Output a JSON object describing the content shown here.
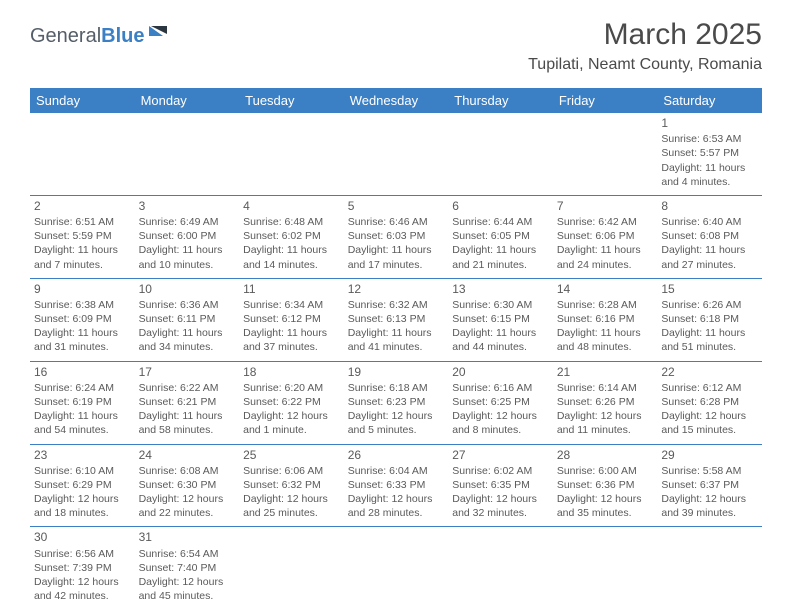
{
  "brand": {
    "part1": "General",
    "part2": "Blue"
  },
  "title": "March 2025",
  "location": "Tupilati, Neamt County, Romania",
  "colors": {
    "header_bg": "#3b7fc4",
    "header_text": "#ffffff",
    "body_text": "#5a5a5a",
    "border": "#3b7fc4",
    "page_bg": "#ffffff"
  },
  "weekdays": [
    "Sunday",
    "Monday",
    "Tuesday",
    "Wednesday",
    "Thursday",
    "Friday",
    "Saturday"
  ],
  "first_weekday_index": 6,
  "days": [
    {
      "n": 1,
      "sunrise": "6:53 AM",
      "sunset": "5:57 PM",
      "daylight": "11 hours and 4 minutes."
    },
    {
      "n": 2,
      "sunrise": "6:51 AM",
      "sunset": "5:59 PM",
      "daylight": "11 hours and 7 minutes."
    },
    {
      "n": 3,
      "sunrise": "6:49 AM",
      "sunset": "6:00 PM",
      "daylight": "11 hours and 10 minutes."
    },
    {
      "n": 4,
      "sunrise": "6:48 AM",
      "sunset": "6:02 PM",
      "daylight": "11 hours and 14 minutes."
    },
    {
      "n": 5,
      "sunrise": "6:46 AM",
      "sunset": "6:03 PM",
      "daylight": "11 hours and 17 minutes."
    },
    {
      "n": 6,
      "sunrise": "6:44 AM",
      "sunset": "6:05 PM",
      "daylight": "11 hours and 21 minutes."
    },
    {
      "n": 7,
      "sunrise": "6:42 AM",
      "sunset": "6:06 PM",
      "daylight": "11 hours and 24 minutes."
    },
    {
      "n": 8,
      "sunrise": "6:40 AM",
      "sunset": "6:08 PM",
      "daylight": "11 hours and 27 minutes."
    },
    {
      "n": 9,
      "sunrise": "6:38 AM",
      "sunset": "6:09 PM",
      "daylight": "11 hours and 31 minutes."
    },
    {
      "n": 10,
      "sunrise": "6:36 AM",
      "sunset": "6:11 PM",
      "daylight": "11 hours and 34 minutes."
    },
    {
      "n": 11,
      "sunrise": "6:34 AM",
      "sunset": "6:12 PM",
      "daylight": "11 hours and 37 minutes."
    },
    {
      "n": 12,
      "sunrise": "6:32 AM",
      "sunset": "6:13 PM",
      "daylight": "11 hours and 41 minutes."
    },
    {
      "n": 13,
      "sunrise": "6:30 AM",
      "sunset": "6:15 PM",
      "daylight": "11 hours and 44 minutes."
    },
    {
      "n": 14,
      "sunrise": "6:28 AM",
      "sunset": "6:16 PM",
      "daylight": "11 hours and 48 minutes."
    },
    {
      "n": 15,
      "sunrise": "6:26 AM",
      "sunset": "6:18 PM",
      "daylight": "11 hours and 51 minutes."
    },
    {
      "n": 16,
      "sunrise": "6:24 AM",
      "sunset": "6:19 PM",
      "daylight": "11 hours and 54 minutes."
    },
    {
      "n": 17,
      "sunrise": "6:22 AM",
      "sunset": "6:21 PM",
      "daylight": "11 hours and 58 minutes."
    },
    {
      "n": 18,
      "sunrise": "6:20 AM",
      "sunset": "6:22 PM",
      "daylight": "12 hours and 1 minute."
    },
    {
      "n": 19,
      "sunrise": "6:18 AM",
      "sunset": "6:23 PM",
      "daylight": "12 hours and 5 minutes."
    },
    {
      "n": 20,
      "sunrise": "6:16 AM",
      "sunset": "6:25 PM",
      "daylight": "12 hours and 8 minutes."
    },
    {
      "n": 21,
      "sunrise": "6:14 AM",
      "sunset": "6:26 PM",
      "daylight": "12 hours and 11 minutes."
    },
    {
      "n": 22,
      "sunrise": "6:12 AM",
      "sunset": "6:28 PM",
      "daylight": "12 hours and 15 minutes."
    },
    {
      "n": 23,
      "sunrise": "6:10 AM",
      "sunset": "6:29 PM",
      "daylight": "12 hours and 18 minutes."
    },
    {
      "n": 24,
      "sunrise": "6:08 AM",
      "sunset": "6:30 PM",
      "daylight": "12 hours and 22 minutes."
    },
    {
      "n": 25,
      "sunrise": "6:06 AM",
      "sunset": "6:32 PM",
      "daylight": "12 hours and 25 minutes."
    },
    {
      "n": 26,
      "sunrise": "6:04 AM",
      "sunset": "6:33 PM",
      "daylight": "12 hours and 28 minutes."
    },
    {
      "n": 27,
      "sunrise": "6:02 AM",
      "sunset": "6:35 PM",
      "daylight": "12 hours and 32 minutes."
    },
    {
      "n": 28,
      "sunrise": "6:00 AM",
      "sunset": "6:36 PM",
      "daylight": "12 hours and 35 minutes."
    },
    {
      "n": 29,
      "sunrise": "5:58 AM",
      "sunset": "6:37 PM",
      "daylight": "12 hours and 39 minutes."
    },
    {
      "n": 30,
      "sunrise": "6:56 AM",
      "sunset": "7:39 PM",
      "daylight": "12 hours and 42 minutes."
    },
    {
      "n": 31,
      "sunrise": "6:54 AM",
      "sunset": "7:40 PM",
      "daylight": "12 hours and 45 minutes."
    }
  ],
  "labels": {
    "sunrise": "Sunrise:",
    "sunset": "Sunset:",
    "daylight": "Daylight:"
  }
}
